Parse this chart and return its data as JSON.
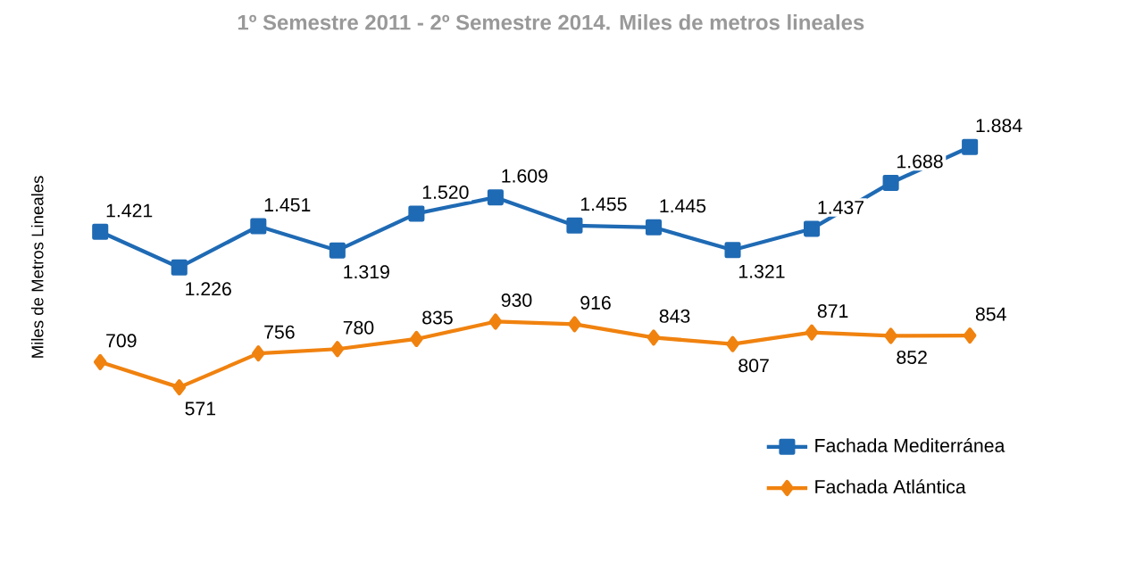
{
  "chart_data": {
    "type": "line",
    "title": "1º Semestre 2011 -  2º Semestre 2014. Miles de metros lineales",
    "ylabel": "Miles de Metros Lineales",
    "categories": [
      null,
      null,
      null,
      null,
      null,
      null,
      null,
      null,
      null,
      null,
      null,
      null
    ],
    "series": [
      {
        "name": "Fachada Mediterránea",
        "color": "#1f6ab4",
        "marker": "square",
        "values": [
          1421,
          1226,
          1451,
          1319,
          1520,
          1609,
          1455,
          1445,
          1321,
          1437,
          1688,
          1884
        ],
        "value_labels": [
          "1.421",
          "1.226",
          "1.451",
          "1.319",
          "1.520",
          "1.609",
          "1.455",
          "1.445",
          "1.321",
          "1.437",
          "1.688",
          "1.884"
        ]
      },
      {
        "name": "Fachada Atlántica",
        "color": "#f0820f",
        "marker": "diamond",
        "values": [
          709,
          571,
          756,
          780,
          835,
          930,
          916,
          843,
          807,
          871,
          852,
          854
        ],
        "value_labels": [
          "709",
          "571",
          "756",
          "780",
          "835",
          "930",
          "916",
          "843",
          "807",
          "871",
          "852",
          "854"
        ]
      }
    ],
    "legend": "bottom right",
    "line_style": "solid"
  }
}
